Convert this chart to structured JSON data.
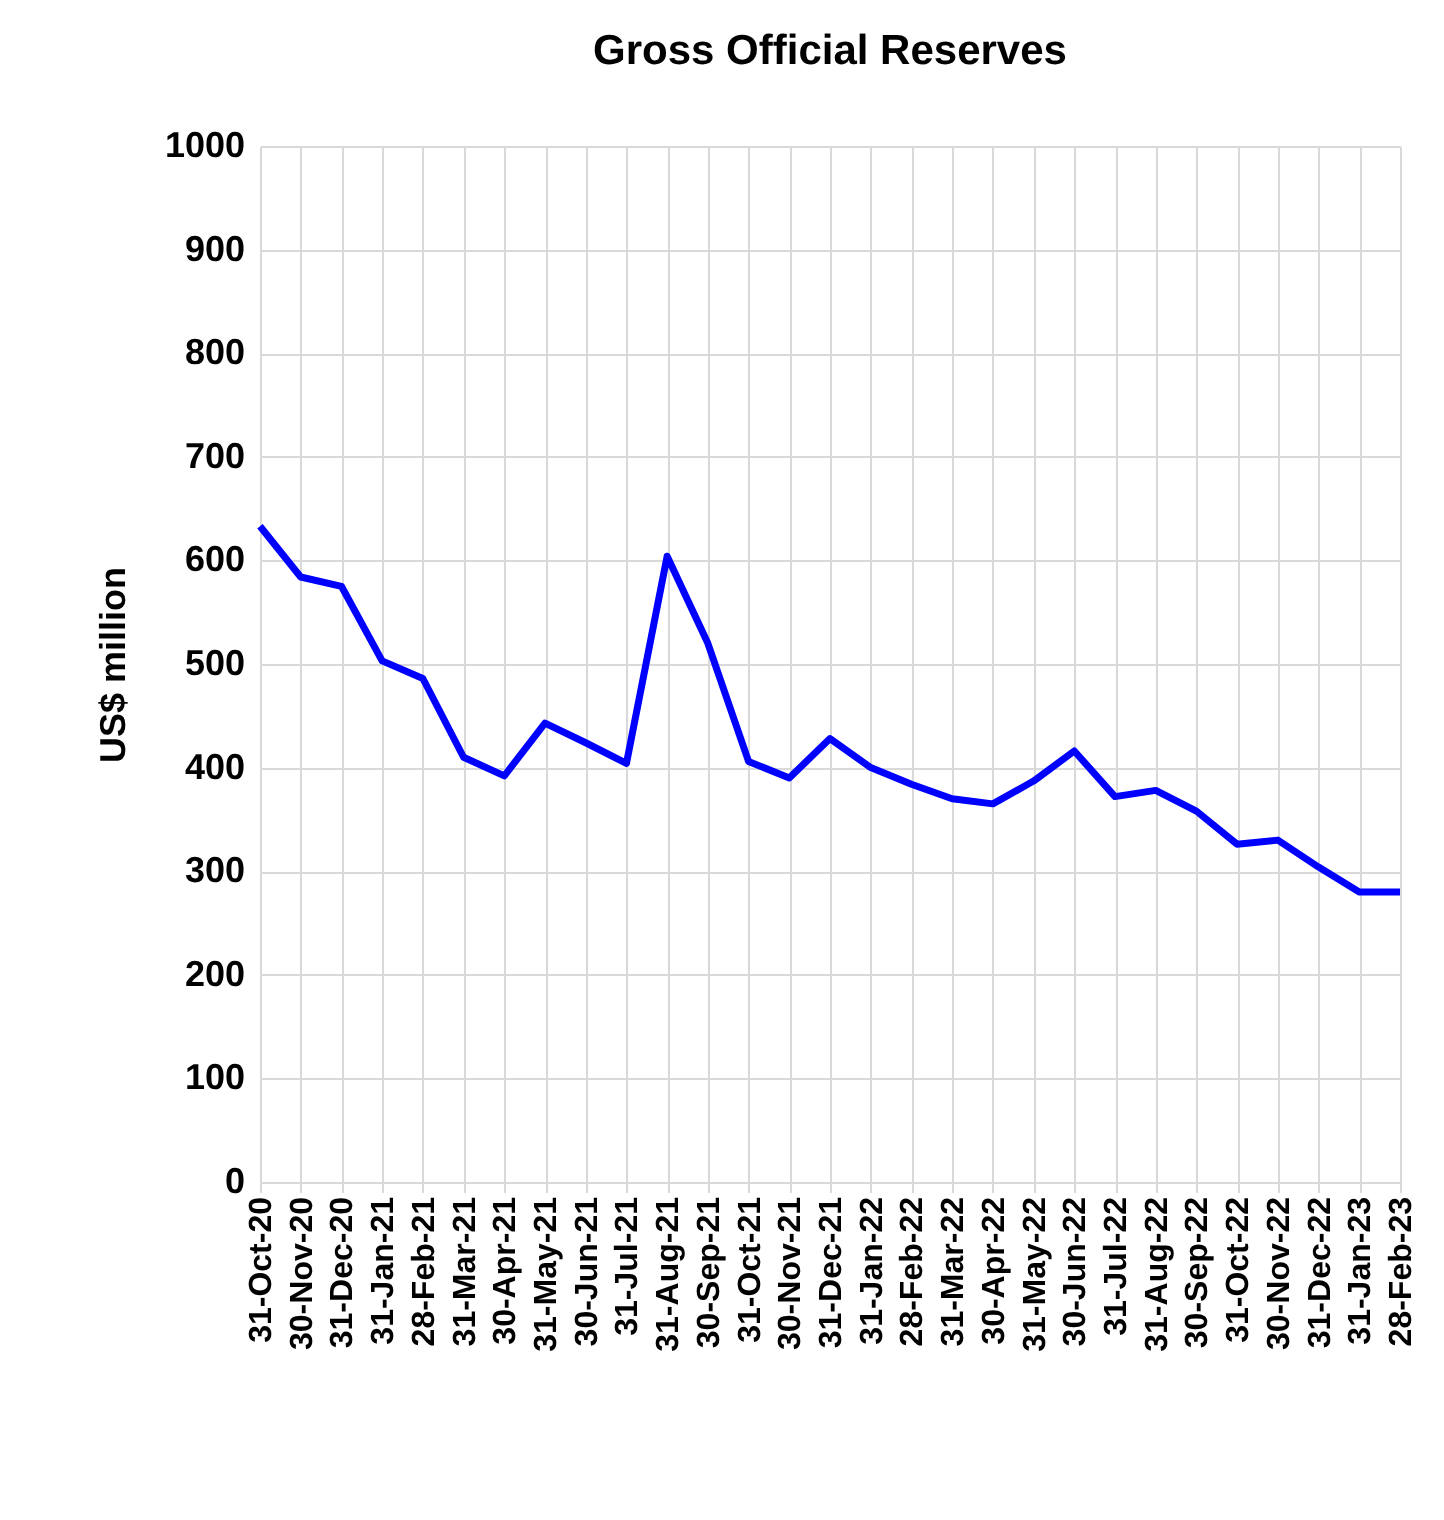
{
  "chart_data": {
    "type": "line",
    "title": "Gross Official Reserves",
    "ylabel": "US$ million",
    "categories": [
      "31-Oct-20",
      "30-Nov-20",
      "31-Dec-20",
      "31-Jan-21",
      "28-Feb-21",
      "31-Mar-21",
      "30-Apr-21",
      "31-May-21",
      "30-Jun-21",
      "31-Jul-21",
      "31-Aug-21",
      "30-Sep-21",
      "31-Oct-21",
      "30-Nov-21",
      "31-Dec-21",
      "31-Jan-22",
      "28-Feb-22",
      "31-Mar-22",
      "30-Apr-22",
      "31-May-22",
      "30-Jun-22",
      "31-Jul-22",
      "31-Aug-22",
      "30-Sep-22",
      "31-Oct-22",
      "30-Nov-22",
      "31-Dec-22",
      "31-Jan-23",
      "28-Feb-23"
    ],
    "series": [
      {
        "color": "#0000ff",
        "values": [
          633,
          584,
          575,
          503,
          486,
          410,
          392,
          443,
          424,
          404,
          604,
          520,
          406,
          390,
          428,
          400,
          384,
          370,
          365,
          387,
          416,
          372,
          378,
          358,
          326,
          330,
          304,
          280,
          280
        ]
      }
    ],
    "ylim": [
      0,
      1000
    ],
    "yticks": [
      0,
      100,
      200,
      300,
      400,
      500,
      600,
      700,
      800,
      900,
      1000
    ],
    "grid": true,
    "legend": false,
    "marker": "none",
    "line_style": "solid"
  }
}
